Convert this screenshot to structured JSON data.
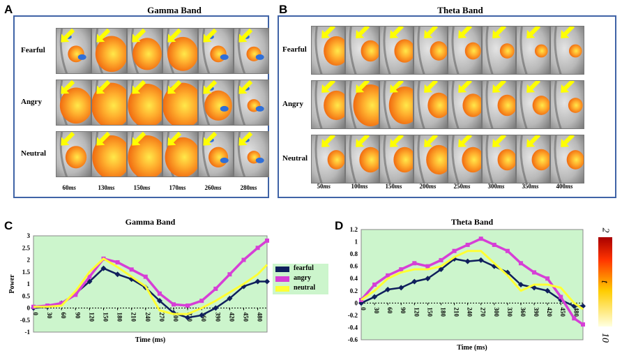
{
  "panels": {
    "A": {
      "letter": "A",
      "title": "Gamma Band",
      "rows": [
        "Fearful",
        "Angry",
        "Neutral"
      ],
      "times": [
        "60",
        "130",
        "150",
        "170",
        "260",
        "280"
      ],
      "time_unit": "ms",
      "activation_size": [
        [
          0.25,
          0.75,
          0.65,
          0.7,
          0.25,
          0.2
        ],
        [
          0.75,
          1.0,
          0.95,
          1.0,
          0.6,
          0.15
        ],
        [
          0.4,
          0.95,
          0.95,
          0.85,
          0.35,
          0.15
        ]
      ],
      "blue_spots": [
        [
          true,
          false,
          false,
          false,
          true,
          true
        ],
        [
          false,
          false,
          false,
          false,
          true,
          true
        ],
        [
          false,
          false,
          false,
          false,
          true,
          true
        ]
      ]
    },
    "B": {
      "letter": "B",
      "title": "Theta  Band",
      "rows": [
        "Fearful",
        "Angry",
        "Neutral"
      ],
      "times": [
        "50",
        "100",
        "150",
        "200",
        "250",
        "300",
        "350",
        "400"
      ],
      "time_unit": "ms",
      "activation_size": [
        [
          0.55,
          0.35,
          0.4,
          0.3,
          0.25,
          0.2,
          0.15,
          0.15
        ],
        [
          0.55,
          0.85,
          0.75,
          0.45,
          0.4,
          0.35,
          0.3,
          0.2
        ],
        [
          0.3,
          0.45,
          0.45,
          0.55,
          0.45,
          0.35,
          0.35,
          0.3
        ]
      ]
    },
    "C": {
      "letter": "C"
    },
    "D": {
      "letter": "D"
    }
  },
  "legend": [
    "fearful",
    "angry",
    "neutral"
  ],
  "colorbar": {
    "top_label": "2",
    "mid_label": "t",
    "bottom_label": "10",
    "gradient": [
      "#a80000",
      "#ff3300",
      "#ffcc00",
      "#ffffe0"
    ]
  },
  "colors": {
    "fearful": "#0f1f5c",
    "angry": "#d63fd6",
    "neutral": "#ffff33",
    "plot_bg": "#ccf5cc",
    "frame": "#3f63a6"
  },
  "chart_data": [
    {
      "type": "line",
      "title": "Gamma Band",
      "xlabel": "Time (ms)",
      "ylabel": "Power",
      "xlim": [
        0,
        500
      ],
      "ylim": [
        -1,
        3
      ],
      "yticks": [
        -1,
        -0.5,
        0,
        0.5,
        1,
        1.5,
        2,
        2.5,
        3
      ],
      "xticks": [
        0,
        30,
        60,
        90,
        120,
        150,
        180,
        210,
        240,
        270,
        300,
        330,
        360,
        390,
        420,
        450,
        480
      ],
      "x": [
        0,
        30,
        60,
        90,
        120,
        150,
        180,
        210,
        240,
        270,
        300,
        330,
        360,
        390,
        420,
        450,
        480,
        500
      ],
      "series": [
        {
          "name": "fearful",
          "values": [
            0,
            0.05,
            0.2,
            0.6,
            1.1,
            1.65,
            1.4,
            1.2,
            0.85,
            0.3,
            -0.2,
            -0.4,
            -0.3,
            0,
            0.4,
            0.9,
            1.1,
            1.1
          ]
        },
        {
          "name": "angry",
          "values": [
            0.05,
            0.1,
            0.2,
            0.55,
            1.3,
            2.05,
            1.9,
            1.6,
            1.3,
            0.6,
            0.15,
            0.1,
            0.3,
            0.8,
            1.4,
            2.0,
            2.5,
            2.8
          ]
        },
        {
          "name": "neutral",
          "values": [
            0.05,
            0.05,
            0.1,
            0.7,
            1.5,
            2.05,
            1.7,
            1.3,
            0.9,
            -0.1,
            -0.25,
            -0.25,
            0,
            0.3,
            0.65,
            1.0,
            1.4,
            1.8
          ]
        }
      ]
    },
    {
      "type": "line",
      "title": "Theta  Band",
      "xlabel": "Time (ms)",
      "ylabel": "",
      "xlim": [
        0,
        500
      ],
      "ylim": [
        -0.6,
        1.2
      ],
      "yticks": [
        -0.6,
        -0.4,
        -0.2,
        0,
        0.2,
        0.4,
        0.6,
        0.8,
        1,
        1.2
      ],
      "xticks": [
        0,
        30,
        60,
        90,
        120,
        150,
        180,
        210,
        240,
        270,
        300,
        330,
        360,
        390,
        420,
        450,
        480
      ],
      "x": [
        0,
        30,
        60,
        90,
        120,
        150,
        180,
        210,
        240,
        270,
        300,
        330,
        360,
        390,
        420,
        450,
        480,
        500
      ],
      "series": [
        {
          "name": "fearful",
          "values": [
            0,
            0.1,
            0.22,
            0.25,
            0.35,
            0.4,
            0.55,
            0.72,
            0.68,
            0.7,
            0.6,
            0.5,
            0.3,
            0.25,
            0.2,
            0.05,
            -0.05,
            -0.05
          ]
        },
        {
          "name": "angry",
          "values": [
            0.05,
            0.3,
            0.45,
            0.55,
            0.65,
            0.6,
            0.7,
            0.85,
            0.95,
            1.05,
            0.95,
            0.85,
            0.65,
            0.5,
            0.4,
            0.1,
            -0.25,
            -0.35
          ]
        },
        {
          "name": "neutral",
          "values": [
            0.05,
            0.2,
            0.4,
            0.5,
            0.55,
            0.55,
            0.6,
            0.75,
            0.85,
            0.85,
            0.65,
            0.45,
            0.2,
            0.3,
            0.3,
            0.25,
            0.0,
            -0.1
          ]
        }
      ]
    }
  ]
}
